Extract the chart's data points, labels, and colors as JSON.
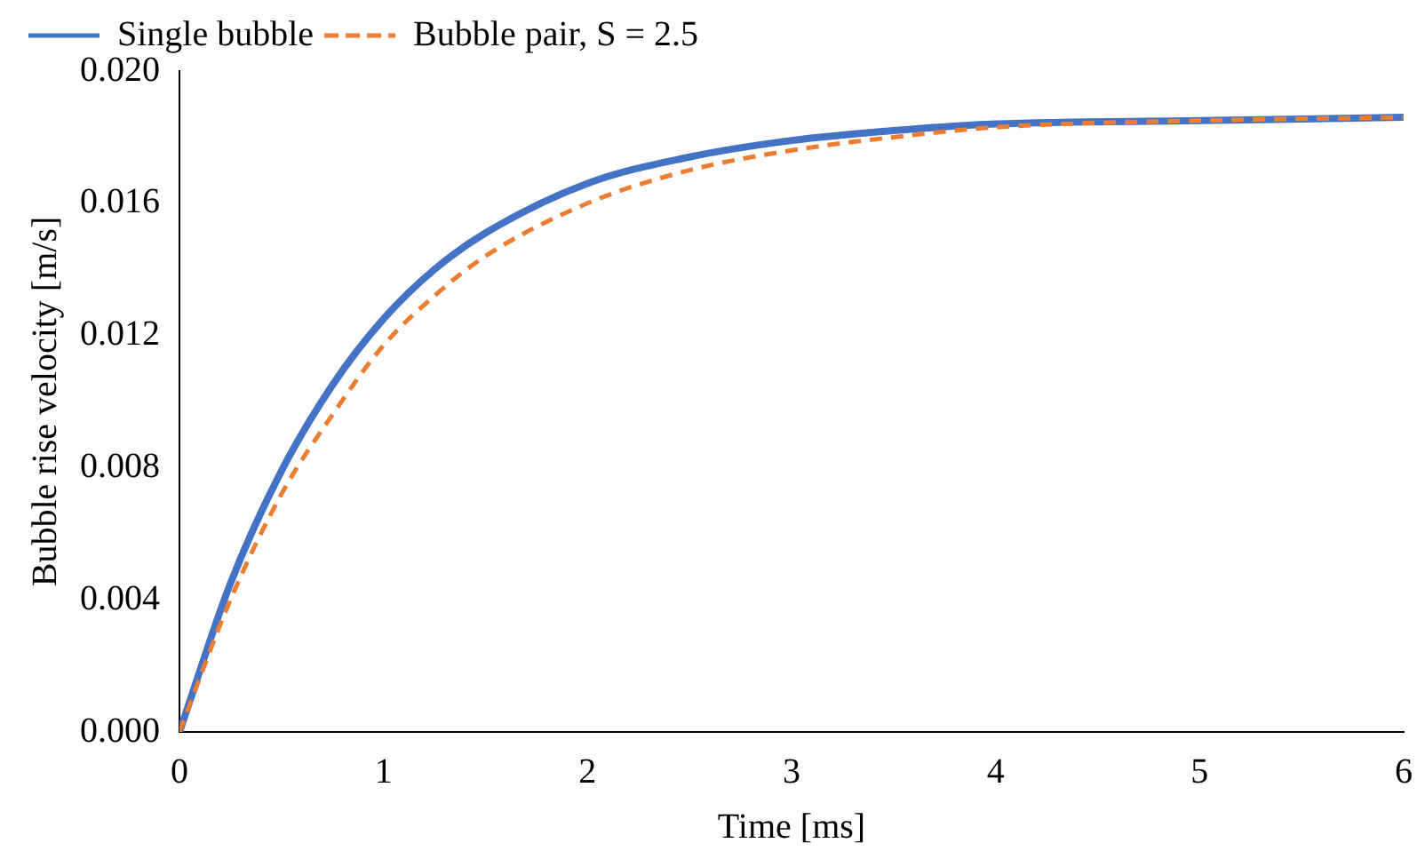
{
  "chart_data": {
    "type": "line",
    "xlabel": "Time [ms]",
    "ylabel": "Bubble rise velocity [m/s]",
    "xlim": [
      0,
      6
    ],
    "xticks": [
      0,
      1,
      2,
      3,
      4,
      5,
      6
    ],
    "ylim": [
      0,
      0.02
    ],
    "yticks": [
      {
        "value": 0,
        "label": "0.000"
      },
      {
        "value": 0.004,
        "label": "0.004"
      },
      {
        "value": 0.008,
        "label": "0.008"
      },
      {
        "value": 0.012,
        "label": "0.012"
      },
      {
        "value": 0.016,
        "label": "0.016"
      },
      {
        "value": 0.02,
        "label": "0.020"
      }
    ],
    "x": [
      0,
      0.25,
      0.5,
      0.75,
      1,
      1.25,
      1.5,
      2,
      2.5,
      3,
      3.5,
      4,
      5,
      6
    ],
    "grid": false,
    "legend": "top left",
    "marker": "none",
    "series": [
      {
        "name": "Single bubble",
        "color": "#4472c4",
        "line_style": "solid",
        "values": [
          0,
          0.0045,
          0.0079,
          0.0105,
          0.0125,
          0.014,
          0.0151,
          0.0166,
          0.0174,
          0.0179,
          0.0182,
          0.0184,
          0.0185,
          0.0186
        ]
      },
      {
        "name": "Bubble pair, S = 2.5",
        "color": "#ed7d31",
        "line_style": "dashed",
        "values": [
          0,
          0.004,
          0.0072,
          0.0096,
          0.0117,
          0.0132,
          0.0144,
          0.016,
          0.017,
          0.0176,
          0.018,
          0.0183,
          0.0185,
          0.0186
        ]
      }
    ]
  }
}
